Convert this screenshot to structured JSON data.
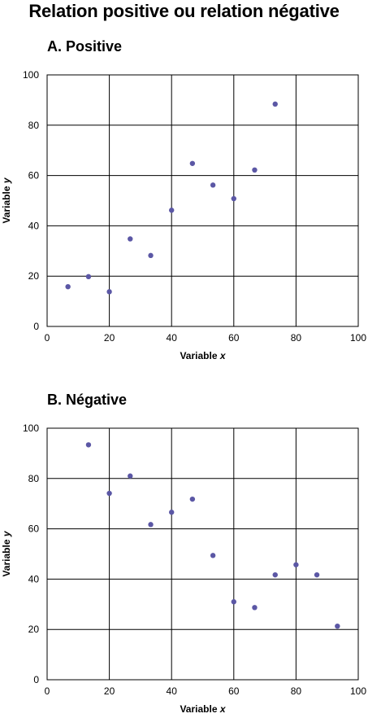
{
  "title": "Relation positive ou relation négative",
  "colors": {
    "point": "#5b57a5",
    "grid": "#000000",
    "background": "#ffffff"
  },
  "chart_data": [
    {
      "type": "scatter",
      "title": "A.  Positive",
      "xlabel": "Variable",
      "xlabel_var": "x",
      "ylabel": "Variable",
      "ylabel_var": "y",
      "xlim": [
        0,
        100
      ],
      "ylim": [
        0,
        100
      ],
      "xticks": [
        0,
        20,
        40,
        60,
        80,
        100
      ],
      "yticks": [
        0,
        20,
        40,
        60,
        80,
        100
      ],
      "grid": true,
      "points": [
        {
          "x": 6.7,
          "y": 15.8
        },
        {
          "x": 13.3,
          "y": 19.8
        },
        {
          "x": 20,
          "y": 13.8
        },
        {
          "x": 26.7,
          "y": 34.8
        },
        {
          "x": 33.3,
          "y": 28.2
        },
        {
          "x": 40,
          "y": 46.2
        },
        {
          "x": 46.7,
          "y": 64.8
        },
        {
          "x": 53.3,
          "y": 56.2
        },
        {
          "x": 60,
          "y": 50.8
        },
        {
          "x": 66.7,
          "y": 62.2
        },
        {
          "x": 73.3,
          "y": 88.4
        }
      ]
    },
    {
      "type": "scatter",
      "title": "B.  Négative",
      "xlabel": "Variable",
      "xlabel_var": "x",
      "ylabel": "Variable",
      "ylabel_var": "y",
      "xlim": [
        0,
        100
      ],
      "ylim": [
        0,
        100
      ],
      "xticks": [
        0,
        20,
        40,
        60,
        80,
        100
      ],
      "yticks": [
        0,
        20,
        40,
        60,
        80,
        100
      ],
      "grid": true,
      "points": [
        {
          "x": 13.3,
          "y": 93.4
        },
        {
          "x": 20,
          "y": 74.1
        },
        {
          "x": 26.7,
          "y": 81.0
        },
        {
          "x": 33.3,
          "y": 61.7
        },
        {
          "x": 40,
          "y": 66.6
        },
        {
          "x": 46.7,
          "y": 71.8
        },
        {
          "x": 53.3,
          "y": 49.4
        },
        {
          "x": 60,
          "y": 31.0
        },
        {
          "x": 66.7,
          "y": 28.7
        },
        {
          "x": 73.3,
          "y": 41.7
        },
        {
          "x": 80,
          "y": 45.7
        },
        {
          "x": 86.7,
          "y": 41.7
        },
        {
          "x": 93.3,
          "y": 21.3
        }
      ]
    }
  ]
}
